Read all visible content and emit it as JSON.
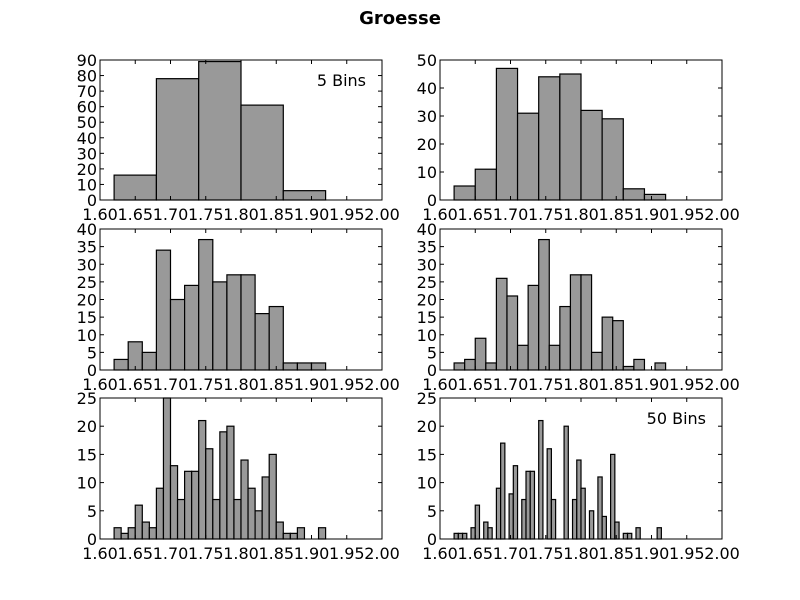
{
  "title": "Groesse",
  "colors": {
    "bar_fill": "#999999",
    "bar_edge": "#000000",
    "background": "#ffffff"
  },
  "chart_data": [
    {
      "type": "bar",
      "bins": 5,
      "annotation": "5 Bins",
      "bin_edges": [
        1.62,
        1.68,
        1.74,
        1.8,
        1.86,
        1.92
      ],
      "values": [
        16,
        78,
        89,
        61,
        6
      ],
      "xlim": [
        1.6,
        2.0
      ],
      "ylim": [
        0,
        90
      ],
      "xticks": [
        "1.60",
        "1.65",
        "1.70",
        "1.75",
        "1.80",
        "1.85",
        "1.90",
        "1.95",
        "2.00"
      ],
      "yticks": [
        "0",
        "10",
        "20",
        "30",
        "40",
        "50",
        "60",
        "70",
        "80",
        "90"
      ]
    },
    {
      "type": "bar",
      "bins": 10,
      "annotation": "",
      "bin_edges": [
        1.62,
        1.65,
        1.68,
        1.71,
        1.74,
        1.77,
        1.8,
        1.83,
        1.86,
        1.89,
        1.92
      ],
      "values": [
        5,
        11,
        47,
        31,
        44,
        45,
        32,
        29,
        4,
        2
      ],
      "xlim": [
        1.6,
        2.0
      ],
      "ylim": [
        0,
        50
      ],
      "xticks": [
        "1.60",
        "1.65",
        "1.70",
        "1.75",
        "1.80",
        "1.85",
        "1.90",
        "1.95",
        "2.00"
      ],
      "yticks": [
        "0",
        "10",
        "20",
        "30",
        "40",
        "50"
      ]
    },
    {
      "type": "bar",
      "bins": 15,
      "annotation": "",
      "bin_edges": [
        1.62,
        1.64,
        1.66,
        1.68,
        1.7,
        1.72,
        1.74,
        1.76,
        1.78,
        1.8,
        1.82,
        1.84,
        1.86,
        1.88,
        1.9,
        1.92
      ],
      "values": [
        3,
        8,
        5,
        34,
        20,
        24,
        37,
        25,
        27,
        27,
        16,
        18,
        2,
        2,
        2
      ],
      "xlim": [
        1.6,
        2.0
      ],
      "ylim": [
        0,
        40
      ],
      "xticks": [
        "1.60",
        "1.65",
        "1.70",
        "1.75",
        "1.80",
        "1.85",
        "1.90",
        "1.95",
        "2.00"
      ],
      "yticks": [
        "0",
        "5",
        "10",
        "15",
        "20",
        "25",
        "30",
        "35",
        "40"
      ]
    },
    {
      "type": "bar",
      "bins": 20,
      "annotation": "",
      "bin_edges": [
        1.62,
        1.635,
        1.65,
        1.665,
        1.68,
        1.695,
        1.71,
        1.725,
        1.74,
        1.755,
        1.77,
        1.785,
        1.8,
        1.815,
        1.83,
        1.845,
        1.86,
        1.875,
        1.89,
        1.905,
        1.92
      ],
      "values": [
        2,
        3,
        9,
        2,
        26,
        21,
        7,
        24,
        37,
        7,
        18,
        27,
        27,
        5,
        15,
        14,
        1,
        3,
        0,
        2
      ],
      "xlim": [
        1.6,
        2.0
      ],
      "ylim": [
        0,
        40
      ],
      "xticks": [
        "1.60",
        "1.65",
        "1.70",
        "1.75",
        "1.80",
        "1.85",
        "1.90",
        "1.95",
        "2.00"
      ],
      "yticks": [
        "0",
        "5",
        "10",
        "15",
        "20",
        "25",
        "30",
        "35",
        "40"
      ]
    },
    {
      "type": "bar",
      "bins": 30,
      "annotation": "",
      "bin_edges": [
        1.62,
        1.63,
        1.64,
        1.65,
        1.66,
        1.67,
        1.68,
        1.69,
        1.7,
        1.71,
        1.72,
        1.73,
        1.74,
        1.75,
        1.76,
        1.77,
        1.78,
        1.79,
        1.8,
        1.81,
        1.82,
        1.83,
        1.84,
        1.85,
        1.86,
        1.87,
        1.88,
        1.89,
        1.9,
        1.91,
        1.92
      ],
      "values": [
        2,
        1,
        2,
        6,
        3,
        2,
        9,
        25,
        13,
        7,
        12,
        12,
        21,
        16,
        7,
        19,
        20,
        7,
        14,
        9,
        5,
        11,
        15,
        3,
        1,
        1,
        2,
        0,
        0,
        2
      ],
      "xlim": [
        1.6,
        2.0
      ],
      "ylim": [
        0,
        25
      ],
      "xticks": [
        "1.60",
        "1.65",
        "1.70",
        "1.75",
        "1.80",
        "1.85",
        "1.90",
        "1.95",
        "2.00"
      ],
      "yticks": [
        "0",
        "5",
        "10",
        "15",
        "20",
        "25"
      ]
    },
    {
      "type": "bar",
      "bins": 50,
      "annotation": "50 Bins",
      "bin_edges_range": [
        1.62,
        1.92
      ],
      "values": [
        1,
        1,
        1,
        0,
        2,
        6,
        0,
        3,
        2,
        0,
        9,
        17,
        0,
        8,
        13,
        0,
        7,
        12,
        12,
        0,
        21,
        0,
        16,
        7,
        0,
        0,
        20,
        0,
        7,
        14,
        9,
        0,
        5,
        0,
        11,
        4,
        0,
        15,
        3,
        0,
        1,
        1,
        0,
        2,
        0,
        0,
        0,
        0,
        2,
        0
      ],
      "xlim": [
        1.6,
        2.0
      ],
      "ylim": [
        0,
        25
      ],
      "xticks": [
        "1.60",
        "1.65",
        "1.70",
        "1.75",
        "1.80",
        "1.85",
        "1.90",
        "1.95",
        "2.00"
      ],
      "yticks": [
        "0",
        "5",
        "10",
        "15",
        "20",
        "25"
      ]
    }
  ]
}
